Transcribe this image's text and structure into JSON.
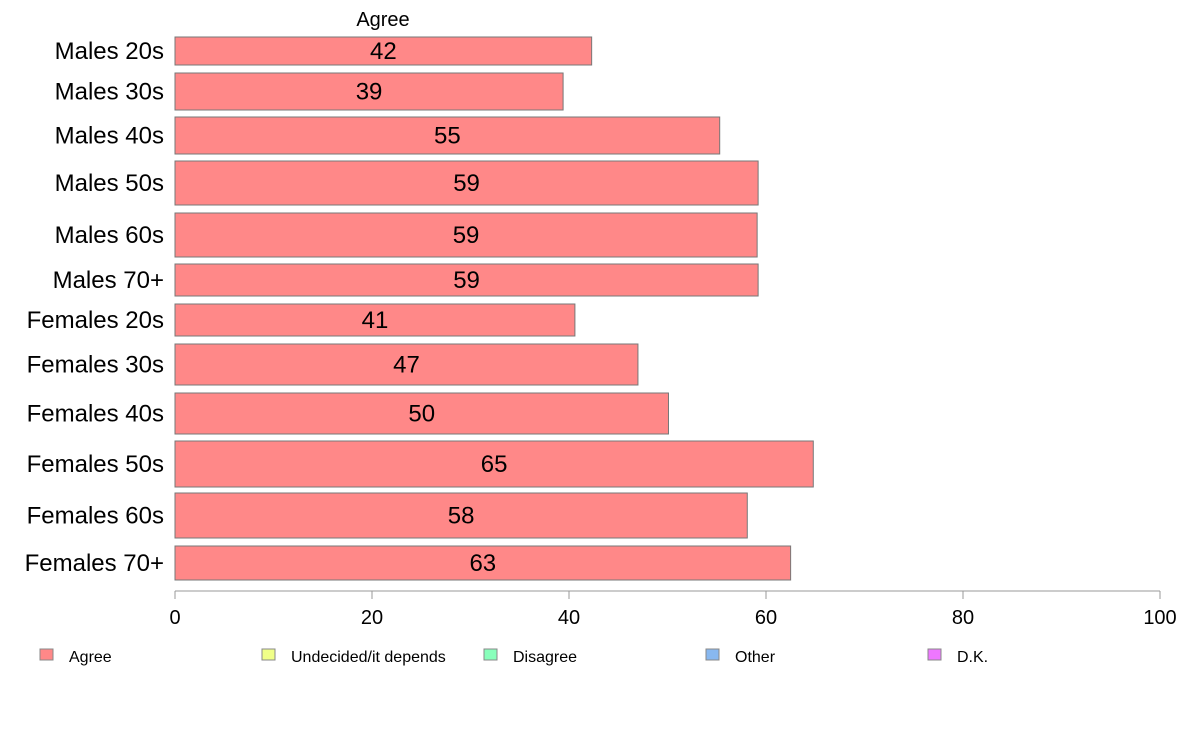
{
  "chart_data": {
    "type": "bar",
    "orientation": "horizontal",
    "stacked": true,
    "title": "Agree",
    "categories": [
      "Males 20s",
      "Males 30s",
      "Males 40s",
      "Males 50s",
      "Males 60s",
      "Males 70+",
      "Females 20s",
      "Females 30s",
      "Females 40s",
      "Females 50s",
      "Females 60s",
      "Females 70+"
    ],
    "series": [
      {
        "name": "Agree",
        "color": "#ff8888",
        "values": [
          42.3,
          39.4,
          55.3,
          59.2,
          59.1,
          59.2,
          40.6,
          47.0,
          50.1,
          64.8,
          58.1,
          62.5
        ],
        "labels": [
          "42",
          "39",
          "55",
          "59",
          "59",
          "59",
          "41",
          "47",
          "50",
          "65",
          "58",
          "63"
        ]
      }
    ],
    "xlim": [
      0,
      100
    ],
    "xticks": [
      "0",
      "20",
      "40",
      "60",
      "80",
      "100"
    ],
    "grid": false,
    "legend_position": "bottom",
    "legend": [
      {
        "label": "Agree",
        "color": "#ff8888"
      },
      {
        "label": "Undecided/it depends",
        "color": "#f0ff88"
      },
      {
        "label": "Disagree",
        "color": "#88ffbb"
      },
      {
        "label": "Other",
        "color": "#88b8f0"
      },
      {
        "label": "D.K.",
        "color": "#ee77ff"
      }
    ]
  }
}
